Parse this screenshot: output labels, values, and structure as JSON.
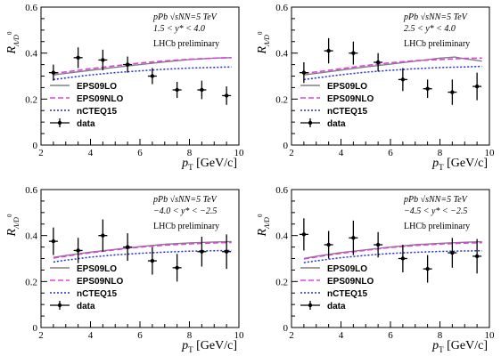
{
  "chart_data": [
    {
      "type": "line",
      "xlabel": "p",
      "xlabel_sub": "T",
      "xlabel_unit": " [GeV/c]",
      "ylabel": "R",
      "ylabel_sub": "Λ/D",
      "ylabel_sup": "0",
      "xlim": [
        2,
        10
      ],
      "ylim": [
        0,
        0.6
      ],
      "xticks": [
        2,
        4,
        6,
        8,
        10
      ],
      "yticks": [
        0,
        0.2,
        0.4,
        0.6
      ],
      "annotations": [
        "pPb √sNN=5 TeV",
        "1.5 < y* < 4.0",
        "LHCb preliminary"
      ],
      "legend": {
        "position": "bottom-left"
      },
      "series": [
        {
          "name": "EPS09LO",
          "style": "solid",
          "color": "#808080",
          "x": [
            2.5,
            3,
            4,
            5,
            6,
            7,
            8,
            9,
            9.7
          ],
          "values": [
            0.305,
            0.312,
            0.325,
            0.338,
            0.35,
            0.362,
            0.372,
            0.378,
            0.38
          ]
        },
        {
          "name": "EPS09NLO",
          "style": "dashed",
          "color": "#e040e0",
          "x": [
            2.5,
            3,
            4,
            5,
            6,
            7,
            8,
            9,
            9.7
          ],
          "values": [
            0.312,
            0.318,
            0.332,
            0.345,
            0.357,
            0.366,
            0.373,
            0.378,
            0.38
          ]
        },
        {
          "name": "nCTEQ15",
          "style": "dotted",
          "color": "#2030d0",
          "x": [
            2.5,
            3,
            4,
            5,
            6,
            7,
            8,
            9,
            9.7
          ],
          "values": [
            0.285,
            0.292,
            0.305,
            0.315,
            0.323,
            0.33,
            0.335,
            0.338,
            0.34
          ]
        },
        {
          "name": "data",
          "style": "points",
          "color": "#000000",
          "x": [
            2.5,
            3.5,
            4.5,
            5.5,
            6.5,
            7.5,
            8.5,
            9.5
          ],
          "values": [
            0.315,
            0.38,
            0.37,
            0.35,
            0.3,
            0.24,
            0.24,
            0.215
          ],
          "errors": [
            0.035,
            0.045,
            0.045,
            0.035,
            0.035,
            0.035,
            0.04,
            0.04
          ]
        }
      ]
    },
    {
      "type": "line",
      "xlabel": "p",
      "xlabel_sub": "T",
      "xlabel_unit": " [GeV/c]",
      "ylabel": "R",
      "ylabel_sub": "Λ/D",
      "ylabel_sup": "0",
      "xlim": [
        2,
        10
      ],
      "ylim": [
        0,
        0.6
      ],
      "xticks": [
        2,
        4,
        6,
        8,
        10
      ],
      "yticks": [
        0,
        0.2,
        0.4,
        0.6
      ],
      "annotations": [
        "pPb √sNN=5 TeV",
        "2.5 < y* < 4.0",
        "LHCb preliminary"
      ],
      "legend": {
        "position": "bottom-left"
      },
      "series": [
        {
          "name": "EPS09LO",
          "style": "solid",
          "color": "#808080",
          "x": [
            2.5,
            3,
            4,
            5,
            6,
            7,
            8,
            8.6,
            9,
            9.7
          ],
          "values": [
            0.305,
            0.312,
            0.326,
            0.34,
            0.352,
            0.365,
            0.378,
            0.383,
            0.375,
            0.365
          ]
        },
        {
          "name": "EPS09NLO",
          "style": "dashed",
          "color": "#e040e0",
          "x": [
            2.5,
            3,
            4,
            5,
            6,
            7,
            8,
            9,
            9.7
          ],
          "values": [
            0.312,
            0.318,
            0.332,
            0.346,
            0.358,
            0.367,
            0.372,
            0.377,
            0.378
          ]
        },
        {
          "name": "nCTEQ15",
          "style": "dotted",
          "color": "#2030d0",
          "x": [
            2.5,
            3,
            4,
            5,
            6,
            7,
            8,
            9,
            9.7
          ],
          "values": [
            0.285,
            0.292,
            0.306,
            0.317,
            0.325,
            0.332,
            0.337,
            0.34,
            0.342
          ]
        },
        {
          "name": "data",
          "style": "points",
          "color": "#000000",
          "x": [
            2.5,
            3.5,
            4.5,
            5.5,
            6.5,
            7.5,
            8.5,
            9.5
          ],
          "values": [
            0.315,
            0.41,
            0.4,
            0.36,
            0.285,
            0.245,
            0.23,
            0.255
          ],
          "errors": [
            0.045,
            0.055,
            0.05,
            0.04,
            0.05,
            0.04,
            0.055,
            0.06
          ]
        }
      ]
    },
    {
      "type": "line",
      "xlabel": "p",
      "xlabel_sub": "T",
      "xlabel_unit": " [GeV/c]",
      "ylabel": "R",
      "ylabel_sub": "Λ/D",
      "ylabel_sup": "0",
      "xlim": [
        2,
        10
      ],
      "ylim": [
        0,
        0.6
      ],
      "xticks": [
        2,
        4,
        6,
        8,
        10
      ],
      "yticks": [
        0,
        0.2,
        0.4,
        0.6
      ],
      "annotations": [
        "pPb √sNN=5 TeV",
        "−4.0 < y* < −2.5",
        "LHCb preliminary"
      ],
      "legend": {
        "position": "bottom-left"
      },
      "series": [
        {
          "name": "EPS09LO",
          "style": "solid",
          "color": "#808080",
          "x": [
            2.5,
            3,
            4,
            5,
            6,
            7,
            8,
            9,
            9.7
          ],
          "values": [
            0.305,
            0.313,
            0.328,
            0.34,
            0.352,
            0.362,
            0.368,
            0.372,
            0.374
          ]
        },
        {
          "name": "EPS09NLO",
          "style": "dashed",
          "color": "#e040e0",
          "x": [
            2.5,
            3,
            4,
            5,
            6,
            7,
            8,
            9,
            9.7
          ],
          "values": [
            0.302,
            0.31,
            0.325,
            0.338,
            0.35,
            0.358,
            0.364,
            0.368,
            0.37
          ]
        },
        {
          "name": "nCTEQ15",
          "style": "dotted",
          "color": "#2030d0",
          "x": [
            2.5,
            3,
            4,
            5,
            6,
            7,
            8,
            9,
            9.7
          ],
          "values": [
            0.285,
            0.293,
            0.306,
            0.316,
            0.323,
            0.328,
            0.332,
            0.334,
            0.335
          ]
        },
        {
          "name": "data",
          "style": "points",
          "color": "#000000",
          "x": [
            2.5,
            3.5,
            4.5,
            5.5,
            6.5,
            7.5,
            8.5,
            9.5
          ],
          "values": [
            0.375,
            0.335,
            0.4,
            0.35,
            0.29,
            0.26,
            0.33,
            0.33
          ],
          "errors": [
            0.06,
            0.055,
            0.07,
            0.06,
            0.06,
            0.06,
            0.065,
            0.075
          ]
        }
      ]
    },
    {
      "type": "line",
      "xlabel": "p",
      "xlabel_sub": "T",
      "xlabel_unit": " [GeV/c]",
      "ylabel": "R",
      "ylabel_sub": "Λ/D",
      "ylabel_sup": "0",
      "xlim": [
        2,
        10
      ],
      "ylim": [
        0,
        0.6
      ],
      "xticks": [
        2,
        4,
        6,
        8,
        10
      ],
      "yticks": [
        0,
        0.2,
        0.4,
        0.6
      ],
      "annotations": [
        "pPb √sNN=5 TeV",
        "−4.5 < y* < −2.5",
        "LHCb preliminary"
      ],
      "legend": {
        "position": "bottom-left"
      },
      "series": [
        {
          "name": "EPS09LO",
          "style": "solid",
          "color": "#808080",
          "x": [
            2.5,
            3,
            4,
            5,
            6,
            7,
            8,
            9,
            9.7
          ],
          "values": [
            0.3,
            0.31,
            0.326,
            0.338,
            0.35,
            0.36,
            0.366,
            0.371,
            0.373
          ]
        },
        {
          "name": "EPS09NLO",
          "style": "dashed",
          "color": "#e040e0",
          "x": [
            2.5,
            3,
            4,
            5,
            6,
            7,
            8,
            9,
            9.7
          ],
          "values": [
            0.298,
            0.307,
            0.323,
            0.336,
            0.348,
            0.357,
            0.363,
            0.367,
            0.369
          ]
        },
        {
          "name": "nCTEQ15",
          "style": "dotted",
          "color": "#2030d0",
          "x": [
            2.5,
            3,
            4,
            5,
            6,
            7,
            8,
            9,
            9.7
          ],
          "values": [
            0.282,
            0.29,
            0.304,
            0.314,
            0.322,
            0.327,
            0.331,
            0.333,
            0.334
          ]
        },
        {
          "name": "data",
          "style": "points",
          "color": "#000000",
          "x": [
            2.5,
            3.5,
            4.5,
            5.5,
            6.5,
            7.5,
            8.5,
            9.5
          ],
          "values": [
            0.405,
            0.36,
            0.39,
            0.36,
            0.3,
            0.255,
            0.325,
            0.31
          ],
          "errors": [
            0.07,
            0.06,
            0.075,
            0.055,
            0.06,
            0.06,
            0.065,
            0.075
          ]
        }
      ]
    }
  ]
}
